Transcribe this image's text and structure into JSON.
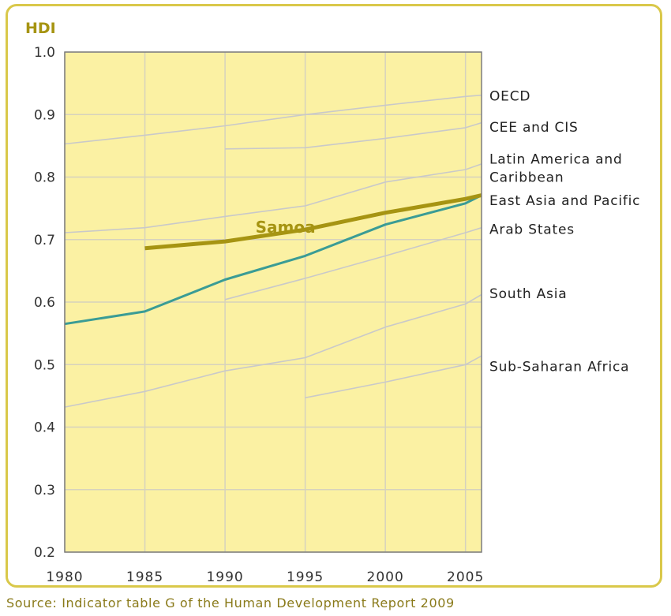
{
  "source_text": "Source: Indicator table G of the Human Development Report 2009",
  "colors": {
    "plot_background": "#fbf1a3",
    "frame": "#d9c84a",
    "gridline": "#d6d2bd",
    "region_line": "#c9c9c9",
    "samoa_line": "#a69412",
    "east_asia_line": "#3a9c95",
    "title_text": "#a69412"
  },
  "chart_data": {
    "type": "line",
    "ylabel": "HDI",
    "ylim": [
      0.2,
      1.0
    ],
    "xlim": [
      1980,
      2006
    ],
    "x_ticks": [
      1980,
      1985,
      1990,
      1995,
      2000,
      2005
    ],
    "y_ticks": [
      0.2,
      0.3,
      0.4,
      0.5,
      0.6,
      0.7,
      0.8,
      0.9,
      1.0
    ],
    "x_tick_labels": [
      "1980",
      "1985",
      "1990",
      "1995",
      "2000",
      "2005"
    ],
    "y_tick_labels": [
      "0.2",
      "0.3",
      "0.4",
      "0.5",
      "0.6",
      "0.7",
      "0.8",
      "0.9",
      "1.0"
    ],
    "grid": true,
    "series": [
      {
        "name": "OECD",
        "style": "region",
        "x": [
          1980,
          1985,
          1990,
          1995,
          2000,
          2005,
          2006
        ],
        "y": [
          0.853,
          0.867,
          0.882,
          0.9,
          0.915,
          0.929,
          0.931
        ]
      },
      {
        "name": "CEE and CIS",
        "style": "region",
        "x": [
          1990,
          1995,
          2000,
          2005,
          2006
        ],
        "y": [
          0.845,
          0.847,
          0.862,
          0.879,
          0.887
        ]
      },
      {
        "name": "Latin America and Caribbean",
        "style": "region",
        "x": [
          1980,
          1985,
          1990,
          1995,
          2000,
          2005,
          2006
        ],
        "y": [
          0.711,
          0.719,
          0.737,
          0.754,
          0.792,
          0.812,
          0.821
        ]
      },
      {
        "name": "East Asia and Pacific",
        "style": "highlight",
        "x": [
          1980,
          1985,
          1990,
          1995,
          2000,
          2005,
          2006
        ],
        "y": [
          0.565,
          0.585,
          0.636,
          0.674,
          0.724,
          0.758,
          0.771
        ]
      },
      {
        "name": "Arab States",
        "style": "region",
        "x": [
          1990,
          1995,
          2000,
          2005,
          2006
        ],
        "y": [
          0.604,
          0.638,
          0.674,
          0.711,
          0.719
        ]
      },
      {
        "name": "South Asia",
        "style": "region",
        "x": [
          1980,
          1985,
          1990,
          1995,
          2000,
          2005,
          2006
        ],
        "y": [
          0.432,
          0.457,
          0.49,
          0.511,
          0.56,
          0.597,
          0.612
        ]
      },
      {
        "name": "Sub-Saharan Africa",
        "style": "region",
        "x": [
          1995,
          2000,
          2005,
          2006
        ],
        "y": [
          0.447,
          0.472,
          0.5,
          0.514
        ]
      },
      {
        "name": "Samoa",
        "style": "samoa",
        "x": [
          1985,
          1990,
          1995,
          2000,
          2005,
          2006
        ],
        "y": [
          0.686,
          0.697,
          0.716,
          0.743,
          0.765,
          0.771
        ]
      }
    ],
    "right_labels": [
      {
        "lines": [
          "OECD"
        ],
        "y": 0.93
      },
      {
        "lines": [
          "CEE and CIS"
        ],
        "y": 0.88
      },
      {
        "lines": [
          "Latin America and",
          "Caribbean"
        ],
        "y": 0.815
      },
      {
        "lines": [
          "East Asia and Pacific"
        ],
        "y": 0.763
      },
      {
        "lines": [
          "Arab States"
        ],
        "y": 0.717
      },
      {
        "lines": [
          "South Asia"
        ],
        "y": 0.614
      },
      {
        "lines": [
          "Sub-Saharan Africa"
        ],
        "y": 0.497
      }
    ],
    "annotations": [
      {
        "text": "Samoa",
        "x": 1991.9,
        "y": 0.711
      }
    ]
  }
}
